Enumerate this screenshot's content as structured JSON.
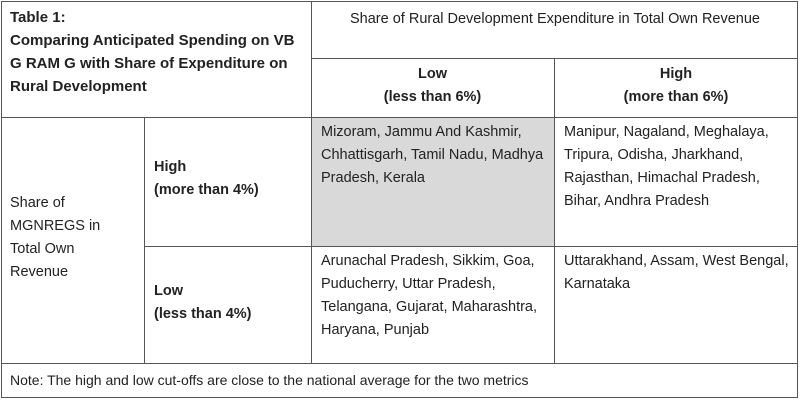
{
  "table": {
    "caption_label": "Table 1:",
    "caption_title": "Comparing Anticipated Spending on VB G RAM G with Share of Expenditure on Rural Development",
    "column_group_header": "Share of Rural Development Expenditure in Total Own Revenue",
    "columns": [
      {
        "label": "Low",
        "sub": "(less than 6%)"
      },
      {
        "label": "High",
        "sub": "(more than 6%)"
      }
    ],
    "row_group_header": "Share of MGNREGS in Total Own Revenue",
    "rows": [
      {
        "label": "High",
        "sub": "(more than 4%)",
        "cells": [
          "Mizoram, Jammu And Kashmir, Chhattisgarh, Tamil Nadu, Madhya Pradesh, Kerala",
          "Manipur, Nagaland, Meghalaya, Tripura, Odisha, Jharkhand, Rajasthan, Himachal Pradesh, Bihar, Andhra Pradesh"
        ]
      },
      {
        "label": "Low",
        "sub": "(less than 4%)",
        "cells": [
          "Arunachal Pradesh, Sikkim, Goa, Puducherry, Uttar Pradesh, Telangana, Gujarat, Maharashtra, Haryana, Punjab",
          "Uttarakhand, Assam, West Bengal, Karnataka"
        ]
      }
    ],
    "note": "Note: The high and low cut-offs are close to the national average for the two metrics",
    "highlight_color": "#d9d9d9"
  }
}
